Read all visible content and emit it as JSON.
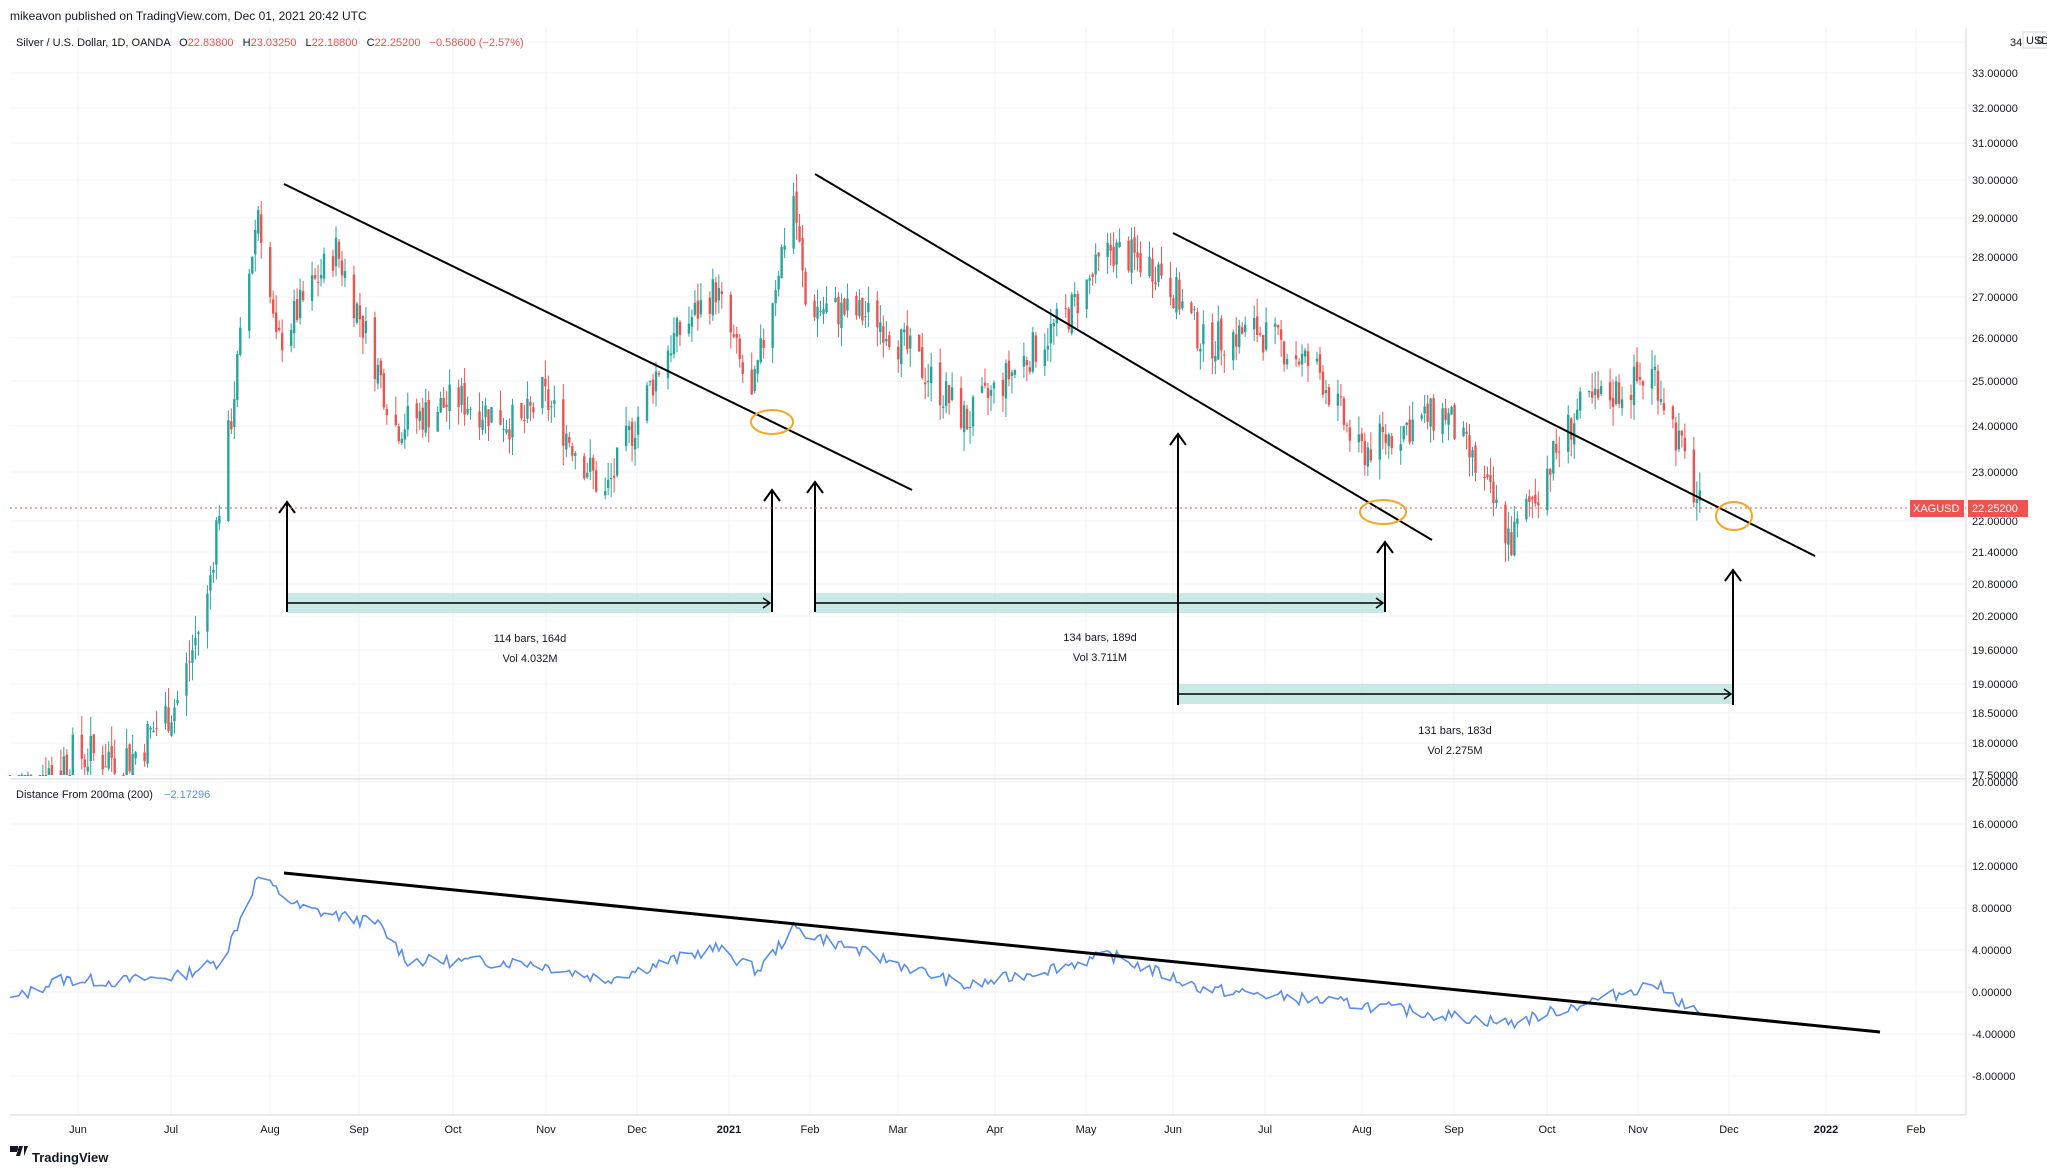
{
  "header": {
    "published": "mikeavon published on TradingView.com, Dec 01, 2021 20:42 UTC"
  },
  "legend": {
    "symbol": "Silver / U.S. Dollar, 1D, OANDA",
    "o_label": "O",
    "o_value": "22.83800",
    "h_label": "H",
    "h_value": "23.03250",
    "l_label": "L",
    "l_value": "22.18800",
    "c_label": "C",
    "c_value": "22.25200",
    "change": "−0.58600 (−2.57%)"
  },
  "price_axis": {
    "currency": "USD",
    "currency_suffix": "0",
    "ticks": [
      "34.",
      "33.00000",
      "32.00000",
      "31.00000",
      "30.00000",
      "29.00000",
      "28.00000",
      "27.00000",
      "26.00000",
      "25.00000",
      "24.00000",
      "23.00000",
      "22.00000",
      "21.40000",
      "20.80000",
      "20.20000",
      "19.60000",
      "19.00000",
      "18.50000",
      "18.00000",
      "17.50000"
    ],
    "last_symbol": "XAGUSD",
    "last_price": "22.25200"
  },
  "indicator": {
    "name": "Distance From 200ma (200)",
    "value": "−2.17296",
    "ticks": [
      "20.00000",
      "16.00000",
      "12.00000",
      "8.00000",
      "4.00000",
      "0.00000",
      "-4.00000",
      "-8.00000"
    ]
  },
  "time_axis": {
    "labels": [
      "Jun",
      "Jul",
      "Aug",
      "Sep",
      "Oct",
      "Nov",
      "Dec",
      "2021",
      "Feb",
      "Mar",
      "Apr",
      "May",
      "Jun",
      "Jul",
      "Aug",
      "Sep",
      "Oct",
      "Nov",
      "Dec",
      "2022",
      "Feb"
    ]
  },
  "measurements": [
    {
      "bars": "114 bars, 164d",
      "vol": "Vol 4.032M"
    },
    {
      "bars": "134 bars, 189d",
      "vol": "Vol 3.711M"
    },
    {
      "bars": "131 bars, 183d",
      "vol": "Vol 2.275M"
    }
  ],
  "footer": {
    "brand": "TradingView"
  },
  "colors": {
    "up": "#26a69a",
    "down": "#ef5350",
    "indicator": "#5b8def",
    "highlight": "#f5a623",
    "range_fill": "#b2dfdb"
  },
  "chart_data": [
    {
      "type": "candlestick",
      "title": "Silver / U.S. Dollar, 1D, OANDA",
      "ylabel": "USD",
      "ylim": [
        17.5,
        34
      ],
      "x_range": [
        "2020-05-15",
        "2022-02-28"
      ],
      "approx_close_path": [
        {
          "date": "2020-05-15",
          "close": 17.2
        },
        {
          "date": "2020-06-05",
          "close": 17.8
        },
        {
          "date": "2020-06-25",
          "close": 17.8
        },
        {
          "date": "2020-07-10",
          "close": 18.7
        },
        {
          "date": "2020-07-20",
          "close": 20.5
        },
        {
          "date": "2020-07-28",
          "close": 24.2
        },
        {
          "date": "2020-08-06",
          "close": 29.3
        },
        {
          "date": "2020-08-12",
          "close": 25.8
        },
        {
          "date": "2020-09-01",
          "close": 28.2
        },
        {
          "date": "2020-09-21",
          "close": 24.0
        },
        {
          "date": "2020-10-12",
          "close": 24.6
        },
        {
          "date": "2020-11-02",
          "close": 24.0
        },
        {
          "date": "2020-11-09",
          "close": 24.7
        },
        {
          "date": "2020-11-30",
          "close": 22.5
        },
        {
          "date": "2020-12-21",
          "close": 25.8
        },
        {
          "date": "2021-01-06",
          "close": 27.2
        },
        {
          "date": "2021-01-18",
          "close": 24.5
        },
        {
          "date": "2021-02-01",
          "close": 29.6
        },
        {
          "date": "2021-02-05",
          "close": 26.8
        },
        {
          "date": "2021-03-01",
          "close": 26.5
        },
        {
          "date": "2021-03-31",
          "close": 24.1
        },
        {
          "date": "2021-05-04",
          "close": 26.6
        },
        {
          "date": "2021-05-18",
          "close": 28.2
        },
        {
          "date": "2021-06-04",
          "close": 27.7
        },
        {
          "date": "2021-06-18",
          "close": 25.9
        },
        {
          "date": "2021-07-06",
          "close": 26.2
        },
        {
          "date": "2021-07-27",
          "close": 25.2
        },
        {
          "date": "2021-08-09",
          "close": 23.4
        },
        {
          "date": "2021-08-25",
          "close": 24.0
        },
        {
          "date": "2021-09-07",
          "close": 24.3
        },
        {
          "date": "2021-09-29",
          "close": 21.6
        },
        {
          "date": "2021-10-21",
          "close": 24.3
        },
        {
          "date": "2021-11-16",
          "close": 25.2
        },
        {
          "date": "2021-12-01",
          "close": 22.25
        }
      ],
      "trendlines": [
        {
          "from": {
            "date": "2020-08-06",
            "price": 29.9
          },
          "to": {
            "date": "2021-02-25",
            "price": 22.7
          }
        },
        {
          "from": {
            "date": "2021-02-01",
            "price": 30.1
          },
          "to": {
            "date": "2021-08-15",
            "price": 21.9
          }
        },
        {
          "from": {
            "date": "2021-06-01",
            "price": 28.5
          },
          "to": {
            "date": "2021-12-25",
            "price": 21.5
          }
        }
      ],
      "annotations": [
        "114 bars, 164d",
        "Vol 4.032M",
        "134 bars, 189d",
        "Vol 3.711M",
        "131 bars, 183d",
        "Vol 2.275M"
      ]
    },
    {
      "type": "line",
      "title": "Distance From 200ma (200)",
      "ylim": [
        -12,
        20
      ],
      "last_value": -2.17296,
      "series": [
        {
          "name": "Distance From 200ma",
          "points": [
            {
              "date": "2020-05-15",
              "value": -0.8
            },
            {
              "date": "2020-06-01",
              "value": 1.2
            },
            {
              "date": "2020-06-20",
              "value": 1.0
            },
            {
              "date": "2020-07-10",
              "value": 1.5
            },
            {
              "date": "2020-07-25",
              "value": 3.0
            },
            {
              "date": "2020-08-06",
              "value": 11.0
            },
            {
              "date": "2020-08-20",
              "value": 8.0
            },
            {
              "date": "2020-09-15",
              "value": 6.5
            },
            {
              "date": "2020-09-25",
              "value": 3.0
            },
            {
              "date": "2020-11-05",
              "value": 2.8
            },
            {
              "date": "2020-11-30",
              "value": 1.2
            },
            {
              "date": "2021-01-06",
              "value": 4.2
            },
            {
              "date": "2021-01-20",
              "value": 2.0
            },
            {
              "date": "2021-02-01",
              "value": 6.0
            },
            {
              "date": "2021-03-31",
              "value": 0.5
            },
            {
              "date": "2021-05-18",
              "value": 3.5
            },
            {
              "date": "2021-06-18",
              "value": 0.3
            },
            {
              "date": "2021-08-09",
              "value": -1.2
            },
            {
              "date": "2021-09-29",
              "value": -3.0
            },
            {
              "date": "2021-11-16",
              "value": 0.8
            },
            {
              "date": "2021-12-01",
              "value": -2.17
            }
          ]
        }
      ],
      "trendline": {
        "from": {
          "date": "2020-08-06",
          "value": 11.3
        },
        "to": {
          "date": "2022-01-25",
          "value": -3.6
        }
      }
    }
  ]
}
